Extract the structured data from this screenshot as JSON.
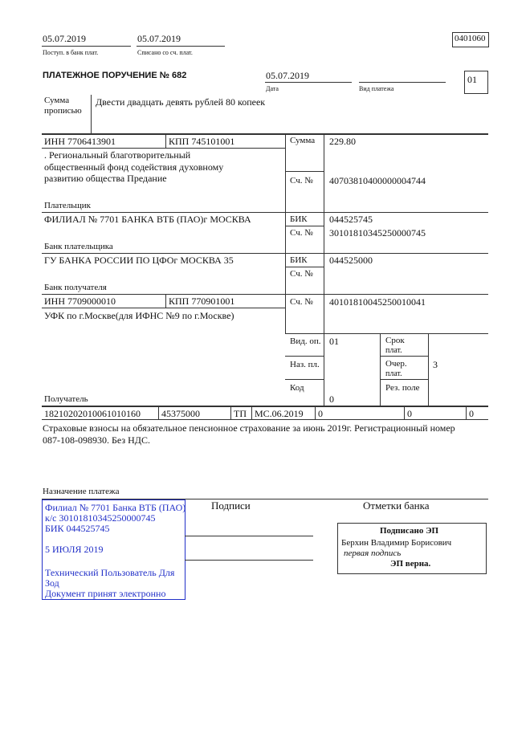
{
  "header": {
    "received_date": "05.07.2019",
    "received_label": "Поступ. в банк плат.",
    "debited_date": "05.07.2019",
    "debited_label": "Списано со сч. плат.",
    "form_code": "0401060"
  },
  "title": "ПЛАТЕЖНОЕ ПОРУЧЕНИЕ № 682",
  "date": "05.07.2019",
  "date_label": "Дата",
  "payment_type_label": "Вид платежа",
  "status_code": "01",
  "amount_words_label_1": "Сумма",
  "amount_words_label_2": "прописью",
  "amount_words": "Двести двадцать девять рублей 80 копеек",
  "payer": {
    "inn": "ИНН 7706413901",
    "kpp": "КПП 745101001",
    "name_lines": [
      ". Региональный благотворительный",
      "общественный фонд содействия духовному",
      "развитию общества Предание"
    ],
    "label": "Плательщик",
    "amount_label": "Сумма",
    "amount": "229.80",
    "account_label": "Сч. №",
    "account": "40703810400000004744"
  },
  "payer_bank": {
    "name": "ФИЛИАЛ № 7701 БАНКА ВТБ (ПАО)г МОСКВА",
    "label": "Банк плательщика",
    "bik_label": "БИК",
    "bik": "044525745",
    "account_label": "Сч. №",
    "account": "30101810345250000745"
  },
  "payee_bank": {
    "name": "ГУ БАНКА РОССИИ ПО ЦФОг МОСКВА 35",
    "label": "Банк получателя",
    "bik_label": "БИК",
    "bik": "044525000",
    "account_label": "Сч. №"
  },
  "payee": {
    "inn": "ИНН 7709000010",
    "kpp": "КПП 770901001",
    "name": "УФК по г.Москве(для ИФНС №9 по г.Москве)",
    "label": "Получатель",
    "account_label": "Сч. №",
    "account": "40101810045250010041"
  },
  "op": {
    "vid_op_label": "Вид. оп.",
    "vid_op": "01",
    "naz_label": "Наз. пл.",
    "kod_label": "Код",
    "kod": "0",
    "srok_label_1": "Срок",
    "srok_label_2": "плат.",
    "ocher_label_1": "Очер.",
    "ocher_label_2": "плат.",
    "ocher": "3",
    "rez_label": "Рез. поле"
  },
  "tax_row": [
    "18210202010061010160",
    "45375000",
    "ТП",
    "МС.06.2019",
    "0",
    "0",
    "0"
  ],
  "purpose_lines": [
    "Страховые взносы на обязательное пенсионное страхование за июнь 2019г. Регистрационный номер",
    "087-108-098930. Без НДС."
  ],
  "purpose_label": "Назначение платежа",
  "stamp": {
    "lines": [
      "Филиал № 7701 Банка ВТБ (ПАО)",
      "к/с 30101810345250000745",
      "БИК 044525745",
      "",
      "5 ИЮЛЯ 2019",
      "",
      "Технический Пользователь Для",
      "Зод",
      "Документ принят электронно"
    ],
    "color": "#2230c8"
  },
  "signatures_label": "Подписи",
  "bank_marks_label": "Отметки банка",
  "esign": {
    "title": "Подписано ЭП",
    "name": "Берхин Владимир Борисович",
    "role": "первая подпись",
    "status": "ЭП верна."
  }
}
